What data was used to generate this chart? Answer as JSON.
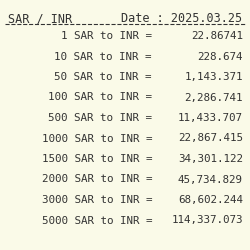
{
  "title": "SAR / INR",
  "date_label": "Date : 2025.03.25",
  "rows": [
    {
      "sar": "1",
      "inr": "22.86741"
    },
    {
      "sar": "10",
      "inr": "228.674"
    },
    {
      "sar": "50",
      "inr": "1,143.371"
    },
    {
      "sar": "100",
      "inr": "2,286.741"
    },
    {
      "sar": "500",
      "inr": "11,433.707"
    },
    {
      "sar": "1000",
      "inr": "22,867.415"
    },
    {
      "sar": "1500",
      "inr": "34,301.122"
    },
    {
      "sar": "2000",
      "inr": "45,734.829"
    },
    {
      "sar": "3000",
      "inr": "68,602.244"
    },
    {
      "sar": "5000",
      "inr": "114,337.073"
    }
  ],
  "bg_color": "#FAFAE8",
  "text_color": "#333333",
  "title_fontsize": 8.5,
  "row_fontsize": 7.8,
  "font_family": "monospace"
}
